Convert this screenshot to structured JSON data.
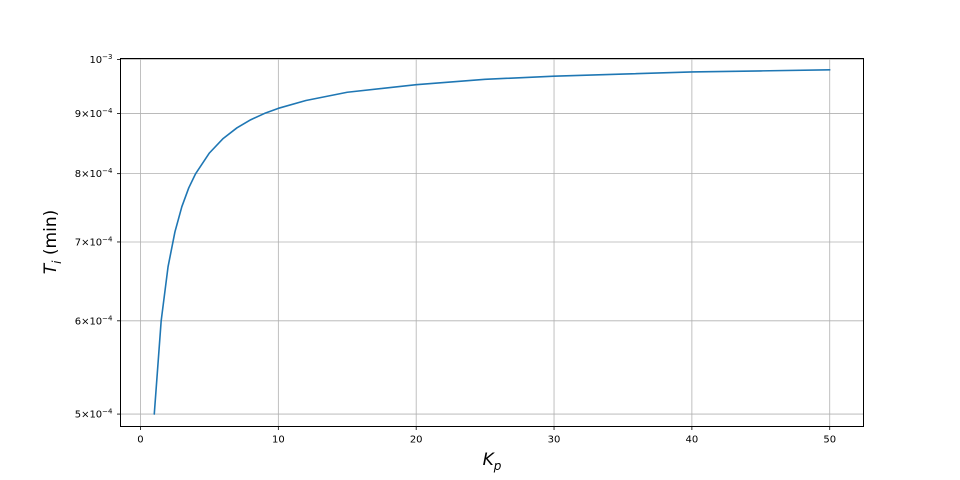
{
  "chart_data": {
    "type": "line",
    "xlabel_main": "K",
    "xlabel_sub": "p",
    "ylabel_main": "T",
    "ylabel_sub": "i",
    "ylabel_rest": " (min)",
    "yscale": "log",
    "xlim": [
      -1.45,
      52.45
    ],
    "ylim": [
      0.000488,
      0.001002
    ],
    "grid": "vertical",
    "x_ticks": [
      0,
      10,
      20,
      30,
      40,
      50
    ],
    "y_ticks": [
      {
        "value": 0.0005,
        "mantissa": "5×10",
        "exp": "−4"
      },
      {
        "value": 0.0006,
        "mantissa": "6×10",
        "exp": "−4"
      },
      {
        "value": 0.0007,
        "mantissa": "7×10",
        "exp": "−4"
      },
      {
        "value": 0.0008,
        "mantissa": "8×10",
        "exp": "−4"
      },
      {
        "value": 0.0009,
        "mantissa": "9×10",
        "exp": "−4"
      },
      {
        "value": 0.001,
        "mantissa": "10",
        "exp": "−3"
      }
    ],
    "series": [
      {
        "color": "#1f77b4",
        "x": [
          1,
          1.5,
          2,
          2.5,
          3,
          3.5,
          4,
          5,
          6,
          7,
          8,
          9,
          10,
          12,
          15,
          20,
          25,
          30,
          35,
          40,
          45,
          50
        ],
        "y": [
          0.0005,
          0.0006,
          0.000667,
          0.000714,
          0.00075,
          0.000778,
          0.0008,
          0.000833,
          0.000857,
          0.000875,
          0.000889,
          0.0009,
          0.000909,
          0.000923,
          0.000938,
          0.000952,
          0.000962,
          0.000968,
          0.000972,
          0.000976,
          0.000978,
          0.00098
        ]
      }
    ]
  }
}
